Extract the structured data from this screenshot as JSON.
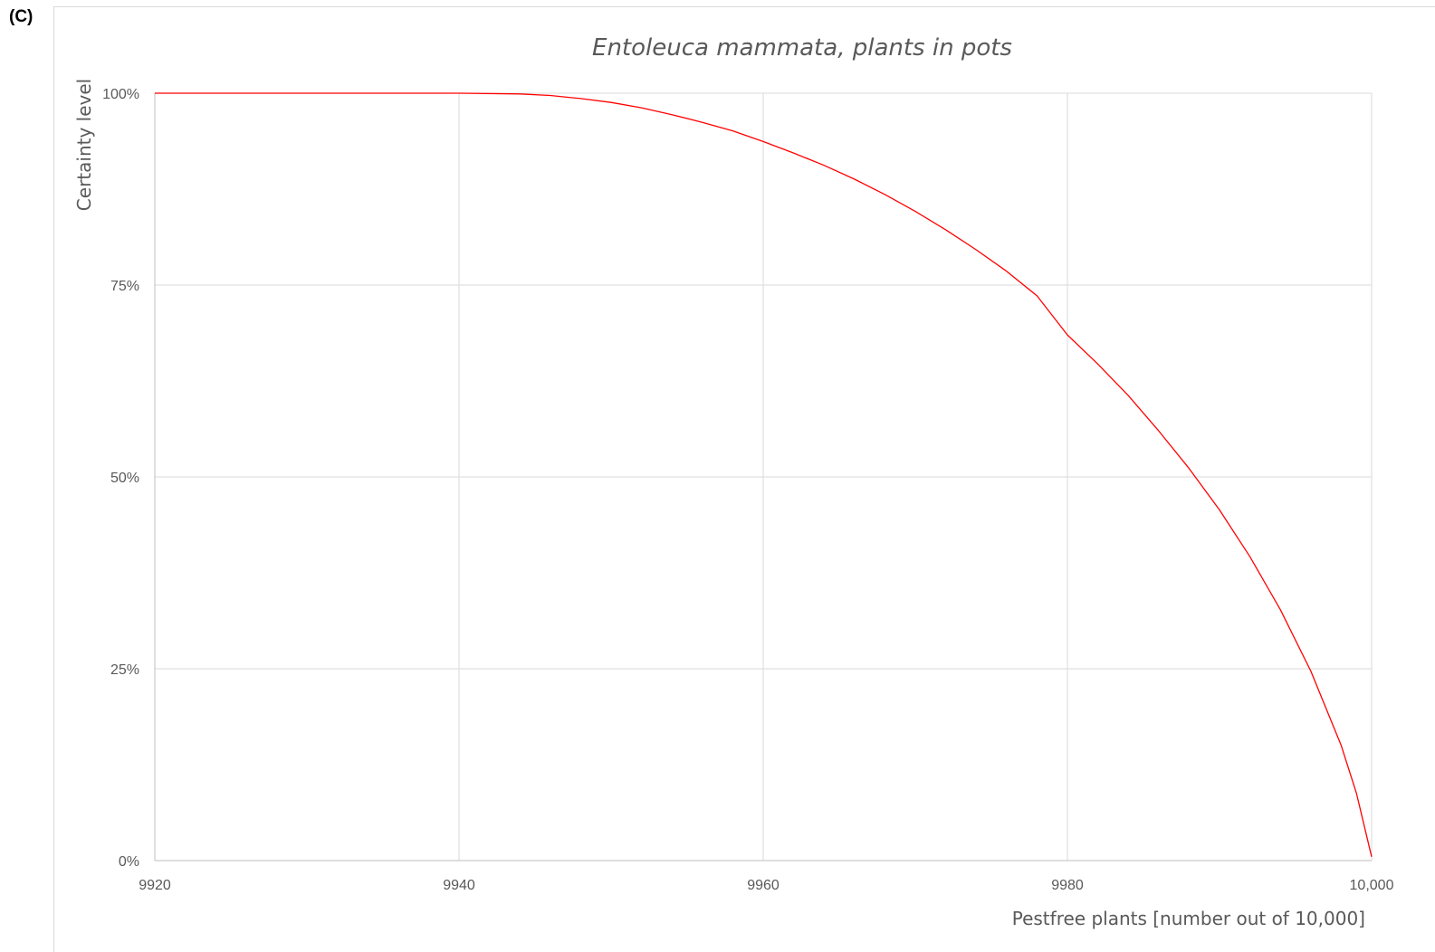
{
  "panel_label": "(C)",
  "colors": {
    "line": "#ff0000",
    "grid": "#d9d9d9",
    "text": "#595959"
  },
  "chart_data": {
    "type": "line",
    "title": "Entoleuca mammata, plants in pots",
    "xlabel": "Pestfree plants [number out of 10,000]",
    "ylabel": "Certainty level",
    "xlim": [
      9920,
      10000
    ],
    "ylim": [
      0,
      1
    ],
    "x_ticks": [
      9920,
      9940,
      9960,
      9980,
      10000
    ],
    "x_tick_labels": [
      "9920",
      "9940",
      "9960",
      "9980",
      "10,000"
    ],
    "y_ticks": [
      0,
      0.25,
      0.5,
      0.75,
      1
    ],
    "y_tick_labels": [
      "0%",
      "25%",
      "50%",
      "75%",
      "100%"
    ],
    "grid": true,
    "legend": "none",
    "series": [
      {
        "x": [
          9920,
          9930,
          9940,
          9944,
          9946,
          9948,
          9950,
          9952,
          9954,
          9956,
          9958,
          9960,
          9962,
          9964,
          9966,
          9968,
          9970,
          9972,
          9974,
          9976,
          9978,
          9980,
          9982,
          9984,
          9986,
          9988,
          9990,
          9992,
          9994,
          9996,
          9998,
          9999,
          10000
        ],
        "y": [
          1.0,
          1.0,
          1.0,
          0.999,
          0.997,
          0.993,
          0.988,
          0.981,
          0.972,
          0.962,
          0.951,
          0.937,
          0.922,
          0.906,
          0.888,
          0.868,
          0.846,
          0.822,
          0.796,
          0.768,
          0.736,
          0.685,
          0.647,
          0.606,
          0.56,
          0.511,
          0.457,
          0.396,
          0.327,
          0.247,
          0.15,
          0.088,
          0.005
        ]
      }
    ]
  }
}
